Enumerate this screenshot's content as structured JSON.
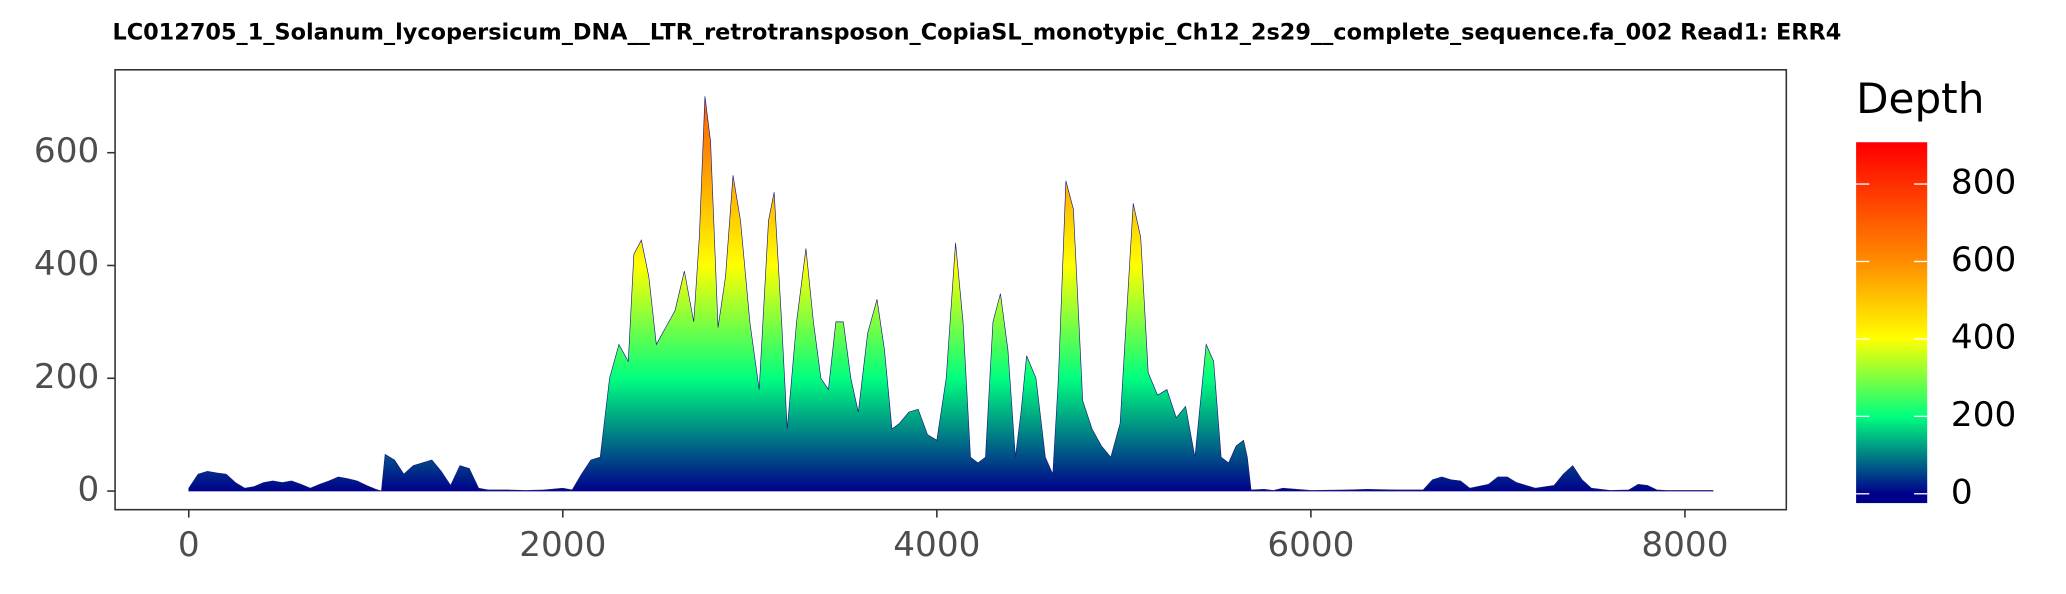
{
  "chart_data": {
    "type": "area",
    "title": "LC012705_1_Solanum_lycopersicum_DNA__LTR_retrotransposon_CopiaSL_monotypic_Ch12_2s29__complete_sequence.fa_002   Read1: ERR4",
    "x": [
      0,
      50,
      100,
      150,
      200,
      250,
      300,
      350,
      400,
      450,
      500,
      550,
      600,
      650,
      700,
      750,
      800,
      850,
      900,
      950,
      1000,
      1030,
      1050,
      1100,
      1150,
      1200,
      1250,
      1300,
      1350,
      1400,
      1450,
      1500,
      1550,
      1600,
      1700,
      1800,
      1900,
      2000,
      2050,
      2100,
      2150,
      2200,
      2250,
      2300,
      2350,
      2380,
      2420,
      2460,
      2500,
      2550,
      2600,
      2650,
      2700,
      2730,
      2760,
      2790,
      2830,
      2870,
      2910,
      2950,
      3000,
      3050,
      3100,
      3130,
      3170,
      3200,
      3250,
      3300,
      3340,
      3380,
      3420,
      3460,
      3500,
      3540,
      3580,
      3630,
      3680,
      3720,
      3760,
      3800,
      3850,
      3900,
      3950,
      4000,
      4050,
      4100,
      4140,
      4180,
      4220,
      4260,
      4300,
      4340,
      4380,
      4420,
      4450,
      4480,
      4530,
      4580,
      4620,
      4650,
      4690,
      4730,
      4780,
      4830,
      4880,
      4930,
      4980,
      5050,
      5090,
      5130,
      5180,
      5230,
      5280,
      5330,
      5380,
      5440,
      5480,
      5520,
      5560,
      5600,
      5640,
      5660,
      5680,
      5750,
      5800,
      5850,
      6000,
      6200,
      6300,
      6450,
      6600,
      6650,
      6700,
      6750,
      6800,
      6850,
      6950,
      7000,
      7050,
      7100,
      7200,
      7300,
      7350,
      7400,
      7450,
      7500,
      7600,
      7700,
      7750,
      7800,
      7850,
      7900,
      8000,
      8150
    ],
    "values": [
      5,
      30,
      35,
      32,
      30,
      15,
      5,
      8,
      15,
      18,
      15,
      18,
      12,
      5,
      12,
      18,
      25,
      22,
      18,
      10,
      3,
      0,
      65,
      55,
      30,
      45,
      50,
      55,
      35,
      10,
      45,
      40,
      5,
      2,
      2,
      1,
      2,
      5,
      2,
      30,
      55,
      60,
      200,
      260,
      230,
      420,
      445,
      380,
      260,
      290,
      320,
      390,
      300,
      450,
      700,
      620,
      290,
      380,
      560,
      480,
      300,
      180,
      480,
      530,
      300,
      110,
      300,
      430,
      300,
      200,
      180,
      300,
      300,
      200,
      140,
      280,
      340,
      250,
      110,
      120,
      140,
      145,
      100,
      90,
      200,
      440,
      300,
      60,
      50,
      60,
      300,
      350,
      250,
      60,
      140,
      240,
      200,
      60,
      30,
      200,
      550,
      500,
      160,
      110,
      80,
      60,
      120,
      510,
      450,
      210,
      170,
      180,
      130,
      150,
      60,
      260,
      230,
      60,
      50,
      80,
      90,
      60,
      2,
      3,
      1,
      5,
      1,
      2,
      3,
      2,
      2,
      20,
      25,
      20,
      18,
      5,
      12,
      25,
      25,
      15,
      5,
      10,
      30,
      45,
      20,
      5,
      1,
      2,
      12,
      10,
      2,
      1,
      1,
      1
    ],
    "xlim": [
      -394,
      8542
    ],
    "ylim": [
      -33,
      747
    ],
    "xticks": [
      0,
      2000,
      4000,
      6000,
      8000
    ],
    "yticks": [
      0,
      200,
      400,
      600
    ],
    "legend_title": "Depth",
    "color_lim": [
      -24,
      908
    ],
    "color_ticks": [
      0,
      200,
      400,
      600,
      800
    ],
    "colorscale": [
      {
        "value": 0,
        "color": "#00008B"
      },
      {
        "value": 200,
        "color": "#00FF7F"
      },
      {
        "value": 400,
        "color": "#FFFF00"
      },
      {
        "value": 600,
        "color": "#FF8C00"
      },
      {
        "value": 900,
        "color": "#FF0000"
      }
    ]
  }
}
